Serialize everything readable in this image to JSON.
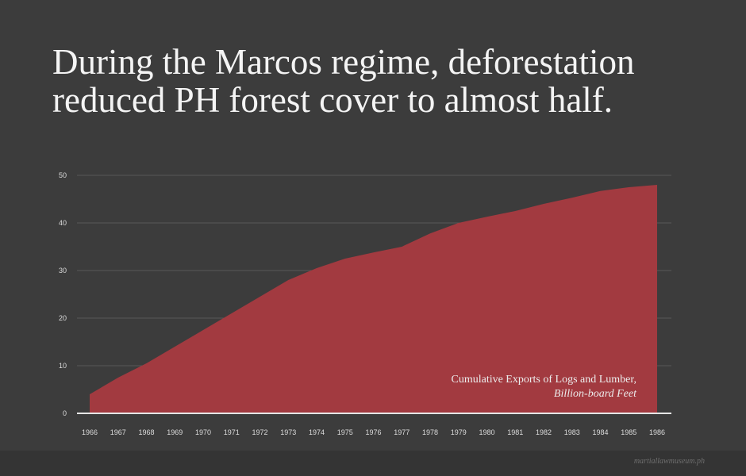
{
  "title_lines": [
    "During the Marcos regime, deforestation",
    "reduced PH forest cover to almost half."
  ],
  "annotation": {
    "line1": "Cumulative Exports of Logs and Lumber,",
    "line2": "Billion-board Feet"
  },
  "credit": "martiallawmuseum.ph",
  "colors": {
    "fill": "#a23a40",
    "grid": "#585858",
    "axis": "#e6e6e6",
    "background": "#3c3c3c"
  },
  "chart_data": {
    "type": "area",
    "title": "During the Marcos regime, deforestation reduced PH forest cover to almost half.",
    "xlabel": "",
    "ylabel": "Cumulative Exports of Logs and Lumber, Billion-board Feet",
    "categories": [
      "1966",
      "1967",
      "1968",
      "1969",
      "1970",
      "1971",
      "1972",
      "1973",
      "1974",
      "1975",
      "1976",
      "1977",
      "1978",
      "1979",
      "1980",
      "1981",
      "1982",
      "1983",
      "1984",
      "1985",
      "1986"
    ],
    "values": [
      4,
      7.5,
      10.5,
      14,
      17.5,
      21,
      24.5,
      28,
      30.5,
      32.5,
      33.8,
      35,
      37.8,
      40,
      41.3,
      42.5,
      44,
      45.3,
      46.7,
      47.5,
      48
    ],
    "yticks": [
      0,
      10,
      20,
      30,
      40,
      50
    ],
    "ylim": [
      0,
      50
    ],
    "grid": true
  }
}
